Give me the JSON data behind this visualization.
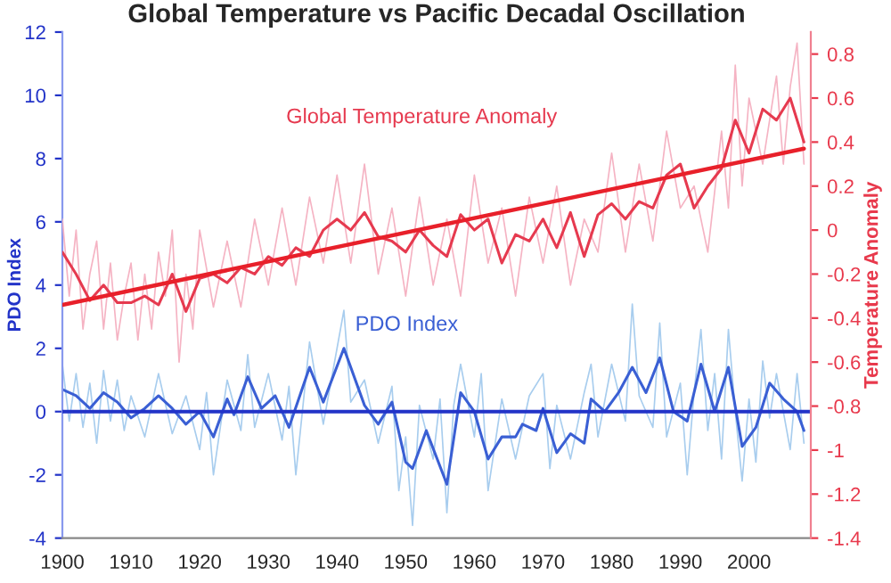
{
  "chart_data": {
    "type": "line",
    "title": "Global Temperature vs Pacific Decadal Oscillation",
    "ylabel": "PDO Index",
    "y2label": "Temperature Anomaly",
    "xlim": [
      1900,
      2009
    ],
    "xticks": [
      1900,
      1910,
      1920,
      1930,
      1940,
      1950,
      1960,
      1970,
      1980,
      1990,
      2000
    ],
    "ylim": [
      -4,
      12
    ],
    "yticks": [
      -4,
      -2,
      0,
      2,
      4,
      6,
      8,
      10,
      12
    ],
    "y2lim": [
      -1.4,
      0.9
    ],
    "y2ticks": [
      -1.4,
      -1.2,
      -1,
      -0.8,
      -0.6,
      -0.4,
      -0.2,
      0,
      0.2,
      0.4,
      0.6,
      0.8
    ],
    "grid": false,
    "legend": false,
    "marker": "none",
    "line_style": "solid",
    "ref_lines": [
      {
        "axis": "y",
        "value": 0,
        "label": null,
        "color": "#2233c8"
      }
    ],
    "series": [
      {
        "color": "#f5b3c3",
        "axis": "y2",
        "x": [
          1900,
          1901,
          1902,
          1903,
          1904,
          1905,
          1906,
          1907,
          1908,
          1909,
          1910,
          1911,
          1912,
          1913,
          1914,
          1915,
          1916,
          1917,
          1918,
          1919,
          1920,
          1922,
          1924,
          1926,
          1928,
          1930,
          1932,
          1934,
          1936,
          1938,
          1940,
          1942,
          1944,
          1946,
          1948,
          1950,
          1952,
          1954,
          1956,
          1958,
          1960,
          1962,
          1964,
          1966,
          1968,
          1970,
          1972,
          1974,
          1976,
          1978,
          1980,
          1982,
          1984,
          1986,
          1988,
          1990,
          1992,
          1994,
          1996,
          1997,
          1998,
          1999,
          2000,
          2002,
          2004,
          2005,
          2006,
          2007,
          2008
        ],
        "values": [
          0.05,
          -0.3,
          0.0,
          -0.45,
          -0.2,
          -0.05,
          -0.45,
          -0.15,
          -0.5,
          -0.3,
          -0.15,
          -0.5,
          -0.2,
          -0.45,
          -0.1,
          -0.3,
          0.0,
          -0.6,
          -0.2,
          -0.45,
          0.0,
          -0.35,
          -0.05,
          -0.35,
          0.05,
          -0.25,
          0.1,
          -0.25,
          0.15,
          -0.15,
          0.25,
          -0.15,
          0.3,
          -0.2,
          0.1,
          -0.3,
          0.15,
          -0.25,
          0.05,
          -0.3,
          0.25,
          -0.15,
          0.1,
          -0.3,
          0.15,
          -0.15,
          0.2,
          -0.25,
          0.05,
          -0.1,
          0.35,
          -0.1,
          0.3,
          -0.05,
          0.45,
          0.1,
          0.2,
          -0.1,
          0.45,
          0.1,
          0.75,
          0.2,
          0.6,
          0.3,
          0.7,
          0.3,
          0.65,
          0.85,
          0.3
        ]
      },
      {
        "name": "Global Temperature Anomaly",
        "color": "#e63a4f",
        "axis": "y2",
        "x": [
          1900,
          1902,
          1904,
          1906,
          1908,
          1910,
          1912,
          1914,
          1916,
          1918,
          1920,
          1922,
          1924,
          1926,
          1928,
          1930,
          1932,
          1934,
          1936,
          1938,
          1940,
          1942,
          1944,
          1946,
          1948,
          1950,
          1952,
          1954,
          1956,
          1958,
          1960,
          1962,
          1964,
          1966,
          1968,
          1970,
          1972,
          1974,
          1976,
          1978,
          1980,
          1982,
          1984,
          1986,
          1988,
          1990,
          1992,
          1994,
          1996,
          1998,
          2000,
          2002,
          2004,
          2006,
          2008
        ],
        "values": [
          -0.1,
          -0.2,
          -0.32,
          -0.25,
          -0.33,
          -0.33,
          -0.3,
          -0.34,
          -0.2,
          -0.37,
          -0.22,
          -0.2,
          -0.24,
          -0.17,
          -0.2,
          -0.12,
          -0.16,
          -0.08,
          -0.12,
          0.0,
          0.05,
          0.0,
          0.08,
          -0.03,
          -0.05,
          -0.1,
          0.0,
          -0.07,
          -0.12,
          0.07,
          0.0,
          0.05,
          -0.15,
          -0.02,
          -0.05,
          0.05,
          -0.08,
          0.08,
          -0.12,
          0.07,
          0.12,
          0.05,
          0.13,
          0.1,
          0.25,
          0.3,
          0.1,
          0.2,
          0.28,
          0.5,
          0.35,
          0.55,
          0.5,
          0.6,
          0.4
        ]
      },
      {
        "color": "#e8202a",
        "axis": "y2",
        "x": [
          1900,
          2008
        ],
        "values": [
          -0.34,
          0.37
        ]
      },
      {
        "color": "#a8cdee",
        "axis": "y",
        "x": [
          1900,
          1901,
          1902,
          1903,
          1904,
          1905,
          1906,
          1907,
          1908,
          1909,
          1910,
          1912,
          1914,
          1916,
          1918,
          1920,
          1921,
          1922,
          1924,
          1926,
          1927,
          1928,
          1930,
          1932,
          1933,
          1934,
          1936,
          1938,
          1940,
          1941,
          1942,
          1944,
          1946,
          1948,
          1949,
          1950,
          1951,
          1952,
          1954,
          1955,
          1956,
          1957,
          1958,
          1960,
          1961,
          1962,
          1964,
          1966,
          1968,
          1970,
          1971,
          1972,
          1974,
          1976,
          1977,
          1978,
          1980,
          1982,
          1983,
          1984,
          1986,
          1987,
          1988,
          1990,
          1991,
          1992,
          1993,
          1994,
          1995,
          1996,
          1997,
          1998,
          1999,
          2000,
          2001,
          2002,
          2003,
          2004,
          2006,
          2007,
          2008
        ],
        "values": [
          1.5,
          -0.3,
          1.2,
          -0.5,
          0.9,
          -1.0,
          1.3,
          -0.3,
          1.0,
          -0.6,
          0.5,
          -0.8,
          1.2,
          -0.7,
          0.5,
          -1.2,
          0.6,
          -2.0,
          1.0,
          -0.6,
          1.8,
          -0.5,
          1.2,
          -0.9,
          0.8,
          -2.0,
          2.2,
          -0.4,
          2.0,
          3.2,
          0.3,
          1.0,
          -1.0,
          0.8,
          -2.5,
          -0.8,
          -3.6,
          0.2,
          -1.5,
          0.4,
          -3.2,
          0.2,
          1.5,
          -0.8,
          1.2,
          -2.5,
          0.4,
          -1.5,
          0.5,
          1.2,
          -1.8,
          0.2,
          -1.5,
          0.6,
          1.5,
          -0.8,
          1.5,
          -0.3,
          3.4,
          0.5,
          -0.5,
          2.8,
          -0.8,
          0.9,
          -2.0,
          0.6,
          2.6,
          -0.6,
          1.2,
          -1.5,
          2.6,
          0.0,
          -2.2,
          0.4,
          -1.6,
          1.6,
          -0.2,
          1.2,
          -1.2,
          1.2,
          -1.0
        ]
      },
      {
        "name": "PDO Index",
        "color": "#3a5fd4",
        "axis": "y",
        "x": [
          1900,
          1902,
          1904,
          1906,
          1908,
          1910,
          1912,
          1914,
          1916,
          1918,
          1920,
          1922,
          1924,
          1925,
          1927,
          1929,
          1931,
          1933,
          1936,
          1938,
          1941,
          1944,
          1946,
          1948,
          1950,
          1951,
          1953,
          1956,
          1958,
          1960,
          1962,
          1964,
          1966,
          1967,
          1969,
          1970,
          1972,
          1974,
          1976,
          1977,
          1979,
          1981,
          1983,
          1985,
          1987,
          1989,
          1991,
          1993,
          1995,
          1997,
          1999,
          2001,
          2003,
          2005,
          2007,
          2008
        ],
        "values": [
          0.7,
          0.5,
          0.1,
          0.6,
          0.3,
          -0.2,
          0.1,
          0.5,
          0.1,
          -0.4,
          0.0,
          -0.8,
          0.4,
          -0.1,
          1.1,
          0.1,
          0.5,
          -0.5,
          1.4,
          0.3,
          2.0,
          0.2,
          -0.4,
          0.3,
          -1.6,
          -1.8,
          -0.6,
          -2.3,
          0.6,
          0.0,
          -1.5,
          -0.8,
          -0.8,
          -0.4,
          -0.6,
          0.1,
          -1.3,
          -0.7,
          -1.0,
          0.4,
          0.0,
          0.6,
          1.4,
          0.6,
          1.7,
          0.0,
          -0.3,
          1.5,
          0.0,
          1.4,
          -1.1,
          -0.5,
          0.9,
          0.4,
          0.0,
          -0.6
        ]
      }
    ]
  }
}
